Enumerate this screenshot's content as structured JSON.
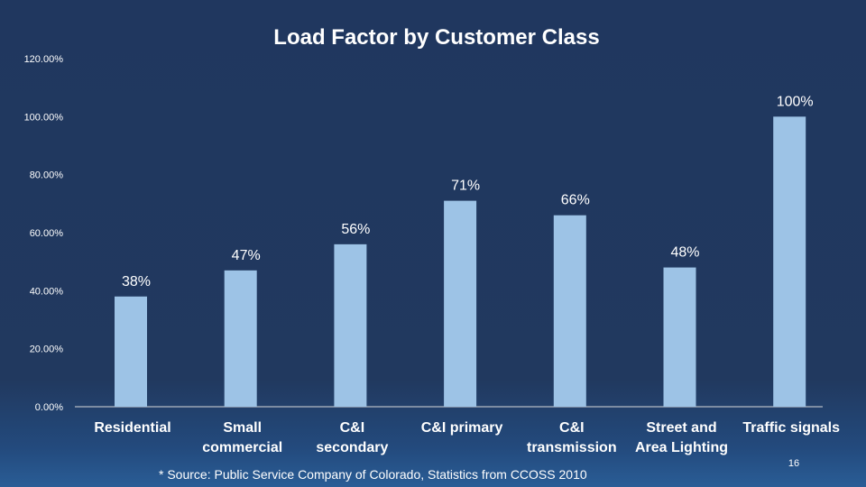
{
  "chart_data": {
    "type": "bar",
    "title": "Load Factor by Customer Class",
    "xlabel": "",
    "ylabel": "",
    "ylim": [
      0,
      1.2
    ],
    "y_tick_labels": [
      "0.00%",
      "20.00%",
      "40.00%",
      "60.00%",
      "80.00%",
      "100.00%",
      "120.00%"
    ],
    "categories": [
      [
        "Residential"
      ],
      [
        "Small",
        "commercial"
      ],
      [
        "C&I",
        "secondary"
      ],
      [
        "C&I primary"
      ],
      [
        "C&I",
        "transmission"
      ],
      [
        "Street and",
        "Area Lighting"
      ],
      [
        "Traffic signals"
      ]
    ],
    "values": [
      0.38,
      0.47,
      0.56,
      0.71,
      0.66,
      0.48,
      1.0
    ],
    "data_labels": [
      "38%",
      "47%",
      "56%",
      "71%",
      "66%",
      "48%",
      "100%"
    ],
    "bar_color": "#9dc3e6",
    "grid": false,
    "legend": "none"
  },
  "footer": {
    "source": "*  Source: Public Service Company of Colorado, Statistics from CCOSS 2010",
    "page_number": "16"
  },
  "colors": {
    "background": "#20375f",
    "text": "#ffffff",
    "axis": "#ffffff"
  }
}
